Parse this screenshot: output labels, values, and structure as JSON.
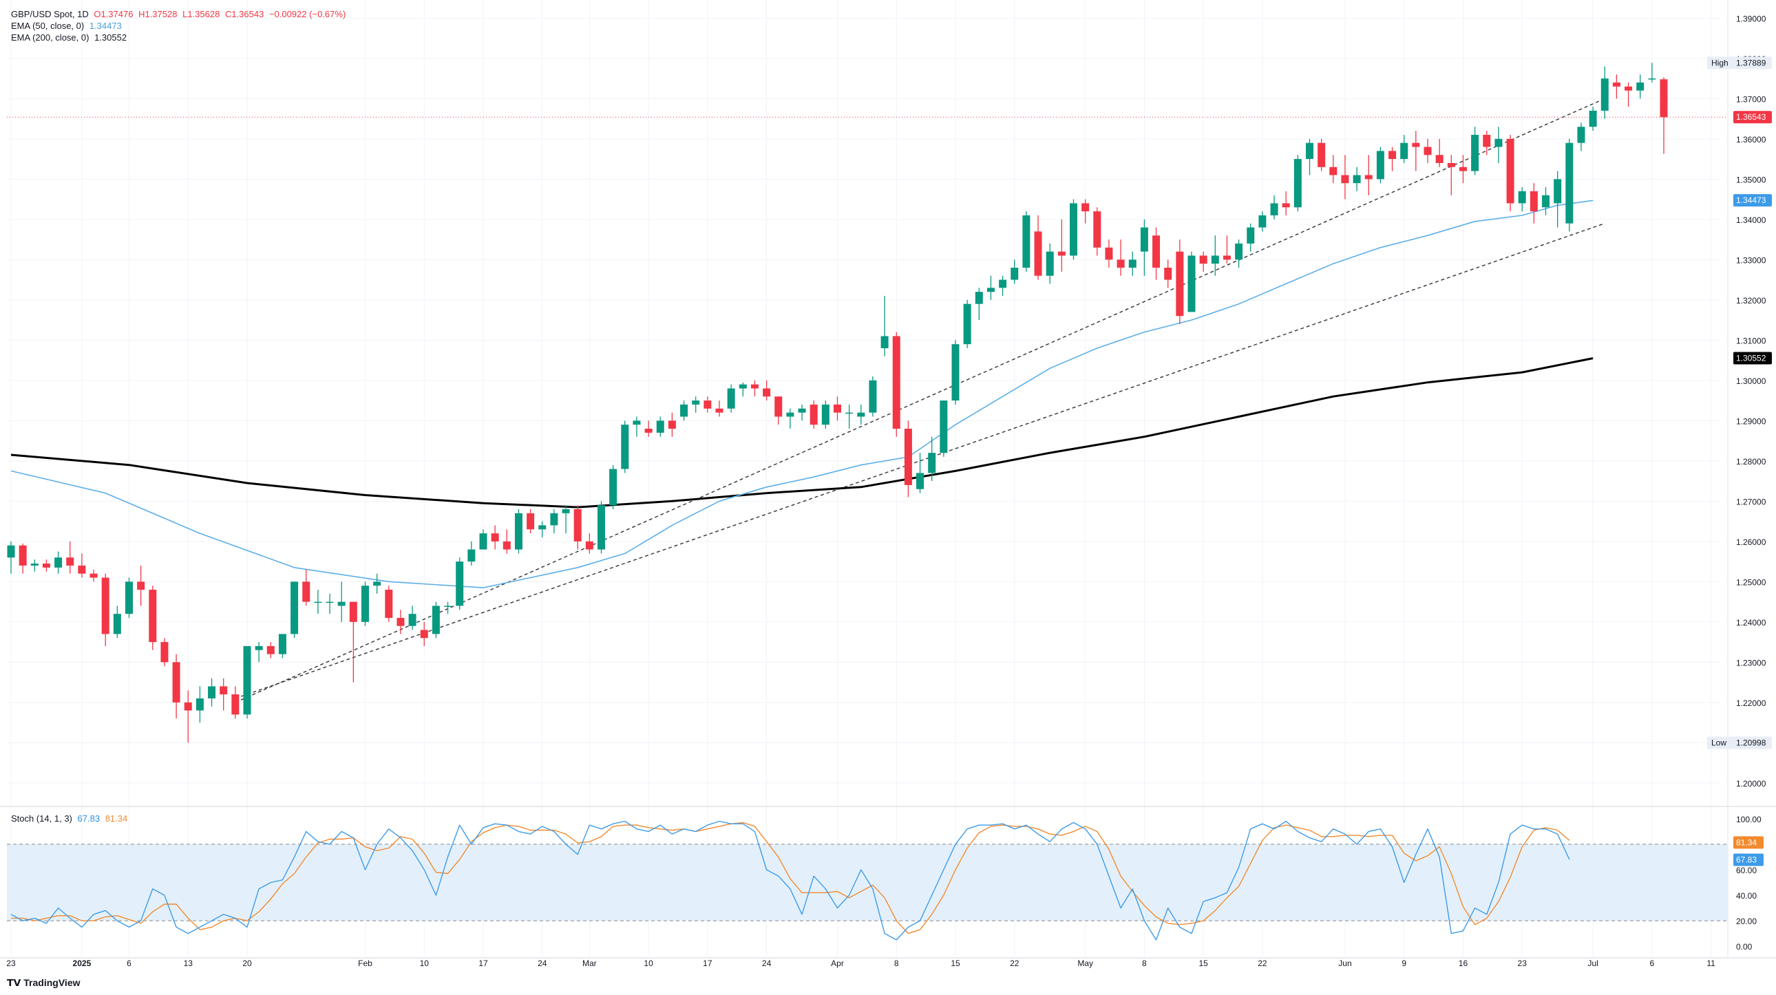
{
  "header": {
    "symbol": "GBP/USD Spot, 1D",
    "o": "O1.37476",
    "h": "H1.37528",
    "l": "L1.35628",
    "c": "C1.36543",
    "chg": "−0.00922 (−0.67%)",
    "ema50_label": "EMA (50, close, 0)",
    "ema50_value": "1.34473",
    "ema200_label": "EMA (200, close, 0)",
    "ema200_value": "1.30552"
  },
  "stoch": {
    "label": "Stoch (14, 1, 3)",
    "k_value": "67.83",
    "d_value": "81.34"
  },
  "footer": {
    "brand": "TradingView"
  },
  "colors": {
    "up": "#089981",
    "down": "#f23645",
    "ema50": "#5aaee8",
    "ema200": "#000000",
    "stoch_k": "#3d9be9",
    "stoch_d": "#f28a2e",
    "band": "#e3f0fb",
    "grid": "#f0f3fa",
    "axis_text": "#131722"
  },
  "chart_data": {
    "type": "candlestick",
    "price_axis": {
      "ticks": [
        "1.39000",
        "1.38000",
        "1.37000",
        "1.36000",
        "1.35000",
        "1.34000",
        "1.33000",
        "1.32000",
        "1.31000",
        "1.30000",
        "1.29000",
        "1.28000",
        "1.27000",
        "1.26000",
        "1.25000",
        "1.24000",
        "1.23000",
        "1.22000",
        "1.21000",
        "1.20000"
      ],
      "range": [
        1.1945,
        1.3945
      ],
      "labels": {
        "high_tag": "High",
        "high_value": "1.37889",
        "low_tag": "Low",
        "low_value": "1.20998",
        "last_value": "1.36543",
        "ema50_value": "1.34473",
        "ema200_value": "1.30552"
      }
    },
    "stoch_axis": {
      "ticks": [
        "100.00",
        "80.00",
        "60.00",
        "40.00",
        "20.00",
        "0.00"
      ],
      "range": [
        -8,
        108
      ],
      "upper_band": 80,
      "lower_band": 20
    },
    "time_axis": {
      "labels": [
        {
          "text": "23",
          "idx": 0
        },
        {
          "text": "2025",
          "idx": 6,
          "bold": true
        },
        {
          "text": "6",
          "idx": 10
        },
        {
          "text": "13",
          "idx": 15
        },
        {
          "text": "20",
          "idx": 20
        },
        {
          "text": "Feb",
          "idx": 30
        },
        {
          "text": "10",
          "idx": 35
        },
        {
          "text": "17",
          "idx": 40
        },
        {
          "text": "24",
          "idx": 45
        },
        {
          "text": "Mar",
          "idx": 49
        },
        {
          "text": "10",
          "idx": 54
        },
        {
          "text": "17",
          "idx": 59
        },
        {
          "text": "24",
          "idx": 64
        },
        {
          "text": "Apr",
          "idx": 70
        },
        {
          "text": "8",
          "idx": 75
        },
        {
          "text": "15",
          "idx": 80
        },
        {
          "text": "22",
          "idx": 85
        },
        {
          "text": "May",
          "idx": 91
        },
        {
          "text": "8",
          "idx": 96
        },
        {
          "text": "15",
          "idx": 101
        },
        {
          "text": "22",
          "idx": 106
        },
        {
          "text": "Jun",
          "idx": 113
        },
        {
          "text": "9",
          "idx": 118
        },
        {
          "text": "16",
          "idx": 123
        },
        {
          "text": "23",
          "idx": 128
        },
        {
          "text": "Jul",
          "idx": 134
        },
        {
          "text": "6",
          "idx": 139
        },
        {
          "text": "11",
          "idx": 144
        }
      ]
    },
    "candles": [
      [
        1.256,
        1.26,
        1.252,
        1.259
      ],
      [
        1.259,
        1.2595,
        1.252,
        1.254
      ],
      [
        1.254,
        1.2555,
        1.2525,
        1.2545
      ],
      [
        1.2545,
        1.2555,
        1.2525,
        1.2535
      ],
      [
        1.2535,
        1.2575,
        1.252,
        1.256
      ],
      [
        1.256,
        1.26,
        1.252,
        1.254
      ],
      [
        1.254,
        1.257,
        1.251,
        1.252
      ],
      [
        1.252,
        1.253,
        1.25,
        1.251
      ],
      [
        1.251,
        1.252,
        1.234,
        1.237
      ],
      [
        1.237,
        1.244,
        1.236,
        1.242
      ],
      [
        1.242,
        1.251,
        1.241,
        1.25
      ],
      [
        1.25,
        1.254,
        1.244,
        1.248
      ],
      [
        1.248,
        1.249,
        1.233,
        1.235
      ],
      [
        1.235,
        1.236,
        1.229,
        1.23
      ],
      [
        1.23,
        1.232,
        1.216,
        1.22
      ],
      [
        1.22,
        1.223,
        1.21,
        1.218
      ],
      [
        1.218,
        1.224,
        1.215,
        1.221
      ],
      [
        1.221,
        1.226,
        1.219,
        1.224
      ],
      [
        1.224,
        1.226,
        1.218,
        1.222
      ],
      [
        1.222,
        1.224,
        1.216,
        1.217
      ],
      [
        1.217,
        1.234,
        1.216,
        1.234
      ],
      [
        1.233,
        1.235,
        1.23,
        1.234
      ],
      [
        1.234,
        1.235,
        1.231,
        1.232
      ],
      [
        1.232,
        1.237,
        1.231,
        1.237
      ],
      [
        1.237,
        1.25,
        1.236,
        1.25
      ],
      [
        1.25,
        1.253,
        1.244,
        1.245
      ],
      [
        1.245,
        1.248,
        1.242,
        1.245
      ],
      [
        1.245,
        1.247,
        1.242,
        1.245
      ],
      [
        1.244,
        1.25,
        1.24,
        1.245
      ],
      [
        1.245,
        1.245,
        1.225,
        1.24
      ],
      [
        1.24,
        1.25,
        1.239,
        1.249
      ],
      [
        1.249,
        1.252,
        1.247,
        1.25
      ],
      [
        1.248,
        1.249,
        1.24,
        1.241
      ],
      [
        1.241,
        1.243,
        1.237,
        1.239
      ],
      [
        1.239,
        1.244,
        1.238,
        1.242
      ],
      [
        1.238,
        1.24,
        1.234,
        1.236
      ],
      [
        1.237,
        1.245,
        1.236,
        1.244
      ],
      [
        1.244,
        1.245,
        1.242,
        1.244
      ],
      [
        1.244,
        1.256,
        1.243,
        1.255
      ],
      [
        1.255,
        1.26,
        1.254,
        1.258
      ],
      [
        1.258,
        1.263,
        1.258,
        1.262
      ],
      [
        1.262,
        1.264,
        1.258,
        1.26
      ],
      [
        1.26,
        1.263,
        1.257,
        1.258
      ],
      [
        1.258,
        1.268,
        1.257,
        1.267
      ],
      [
        1.267,
        1.268,
        1.262,
        1.263
      ],
      [
        1.263,
        1.265,
        1.261,
        1.264
      ],
      [
        1.264,
        1.268,
        1.262,
        1.267
      ],
      [
        1.267,
        1.269,
        1.262,
        1.268
      ],
      [
        1.268,
        1.269,
        1.258,
        1.26
      ],
      [
        1.26,
        1.262,
        1.257,
        1.258
      ],
      [
        1.258,
        1.27,
        1.257,
        1.269
      ],
      [
        1.269,
        1.279,
        1.268,
        1.278
      ],
      [
        1.278,
        1.29,
        1.277,
        1.289
      ],
      [
        1.289,
        1.291,
        1.286,
        1.29
      ],
      [
        1.288,
        1.29,
        1.286,
        1.287
      ],
      [
        1.287,
        1.291,
        1.286,
        1.29
      ],
      [
        1.29,
        1.292,
        1.286,
        1.288
      ],
      [
        1.291,
        1.295,
        1.29,
        1.294
      ],
      [
        1.294,
        1.296,
        1.292,
        1.295
      ],
      [
        1.295,
        1.296,
        1.292,
        1.293
      ],
      [
        1.293,
        1.295,
        1.291,
        1.292
      ],
      [
        1.293,
        1.299,
        1.292,
        1.298
      ],
      [
        1.298,
        1.2995,
        1.296,
        1.299
      ],
      [
        1.299,
        1.3,
        1.296,
        1.298
      ],
      [
        1.298,
        1.3,
        1.295,
        1.296
      ],
      [
        1.296,
        1.296,
        1.289,
        1.291
      ],
      [
        1.291,
        1.293,
        1.288,
        1.292
      ],
      [
        1.292,
        1.294,
        1.29,
        1.293
      ],
      [
        1.294,
        1.295,
        1.288,
        1.289
      ],
      [
        1.289,
        1.295,
        1.288,
        1.294
      ],
      [
        1.294,
        1.296,
        1.29,
        1.292
      ],
      [
        1.292,
        1.294,
        1.288,
        1.292
      ],
      [
        1.291,
        1.294,
        1.289,
        1.292
      ],
      [
        1.292,
        1.301,
        1.291,
        1.3
      ],
      [
        1.308,
        1.321,
        1.306,
        1.311
      ],
      [
        1.311,
        1.312,
        1.286,
        1.288
      ],
      [
        1.288,
        1.29,
        1.271,
        1.274
      ],
      [
        1.273,
        1.282,
        1.272,
        1.277
      ],
      [
        1.277,
        1.286,
        1.275,
        1.282
      ],
      [
        1.282,
        1.295,
        1.281,
        1.295
      ],
      [
        1.295,
        1.31,
        1.294,
        1.309
      ],
      [
        1.309,
        1.32,
        1.308,
        1.319
      ],
      [
        1.319,
        1.323,
        1.315,
        1.322
      ],
      [
        1.322,
        1.326,
        1.32,
        1.323
      ],
      [
        1.323,
        1.326,
        1.321,
        1.325
      ],
      [
        1.325,
        1.33,
        1.324,
        1.328
      ],
      [
        1.328,
        1.342,
        1.327,
        1.341
      ],
      [
        1.337,
        1.341,
        1.325,
        1.326
      ],
      [
        1.326,
        1.334,
        1.324,
        1.332
      ],
      [
        1.332,
        1.34,
        1.327,
        1.331
      ],
      [
        1.331,
        1.345,
        1.33,
        1.344
      ],
      [
        1.344,
        1.345,
        1.339,
        1.342
      ],
      [
        1.342,
        1.343,
        1.331,
        1.333
      ],
      [
        1.333,
        1.335,
        1.328,
        1.33
      ],
      [
        1.33,
        1.335,
        1.326,
        1.328
      ],
      [
        1.328,
        1.332,
        1.326,
        1.33
      ],
      [
        1.332,
        1.34,
        1.326,
        1.338
      ],
      [
        1.336,
        1.338,
        1.325,
        1.328
      ],
      [
        1.328,
        1.33,
        1.323,
        1.325
      ],
      [
        1.332,
        1.335,
        1.314,
        1.316
      ],
      [
        1.317,
        1.332,
        1.317,
        1.331
      ],
      [
        1.331,
        1.332,
        1.327,
        1.329
      ],
      [
        1.329,
        1.336,
        1.326,
        1.331
      ],
      [
        1.331,
        1.336,
        1.329,
        1.33
      ],
      [
        1.33,
        1.335,
        1.328,
        1.334
      ],
      [
        1.334,
        1.339,
        1.332,
        1.338
      ],
      [
        1.338,
        1.342,
        1.337,
        1.341
      ],
      [
        1.341,
        1.346,
        1.34,
        1.344
      ],
      [
        1.344,
        1.347,
        1.341,
        1.343
      ],
      [
        1.343,
        1.356,
        1.342,
        1.355
      ],
      [
        1.355,
        1.36,
        1.351,
        1.359
      ],
      [
        1.359,
        1.36,
        1.352,
        1.353
      ],
      [
        1.353,
        1.356,
        1.349,
        1.351
      ],
      [
        1.351,
        1.356,
        1.345,
        1.349
      ],
      [
        1.349,
        1.353,
        1.347,
        1.351
      ],
      [
        1.351,
        1.356,
        1.346,
        1.35
      ],
      [
        1.35,
        1.358,
        1.349,
        1.357
      ],
      [
        1.357,
        1.358,
        1.352,
        1.355
      ],
      [
        1.355,
        1.361,
        1.354,
        1.359
      ],
      [
        1.359,
        1.362,
        1.352,
        1.358
      ],
      [
        1.358,
        1.36,
        1.354,
        1.356
      ],
      [
        1.356,
        1.36,
        1.353,
        1.354
      ],
      [
        1.354,
        1.356,
        1.346,
        1.353
      ],
      [
        1.353,
        1.356,
        1.349,
        1.352
      ],
      [
        1.352,
        1.363,
        1.351,
        1.361
      ],
      [
        1.361,
        1.362,
        1.356,
        1.358
      ],
      [
        1.358,
        1.363,
        1.354,
        1.36
      ],
      [
        1.36,
        1.361,
        1.342,
        1.344
      ],
      [
        1.344,
        1.348,
        1.342,
        1.347
      ],
      [
        1.347,
        1.349,
        1.339,
        1.342
      ],
      [
        1.343,
        1.348,
        1.341,
        1.346
      ],
      [
        1.344,
        1.352,
        1.338,
        1.35
      ],
      [
        1.339,
        1.36,
        1.337,
        1.359
      ],
      [
        1.359,
        1.364,
        1.357,
        1.363
      ],
      [
        1.363,
        1.368,
        1.362,
        1.367
      ],
      [
        1.367,
        1.378,
        1.365,
        1.375
      ],
      [
        1.374,
        1.376,
        1.37,
        1.373
      ],
      [
        1.373,
        1.374,
        1.368,
        1.372
      ],
      [
        1.372,
        1.376,
        1.37,
        1.374
      ],
      [
        1.375,
        1.3789,
        1.374,
        1.375
      ],
      [
        1.3748,
        1.3753,
        1.3563,
        1.3654
      ]
    ],
    "ema50": [
      [
        0,
        1.2775
      ],
      [
        8,
        1.272
      ],
      [
        16,
        1.262
      ],
      [
        24,
        1.2535
      ],
      [
        32,
        1.25
      ],
      [
        40,
        1.2485
      ],
      [
        48,
        1.2535
      ],
      [
        52,
        1.257
      ],
      [
        56,
        1.264
      ],
      [
        60,
        1.27
      ],
      [
        64,
        1.2735
      ],
      [
        68,
        1.276
      ],
      [
        72,
        1.279
      ],
      [
        76,
        1.281
      ],
      [
        80,
        1.289
      ],
      [
        84,
        1.296
      ],
      [
        88,
        1.303
      ],
      [
        92,
        1.308
      ],
      [
        96,
        1.312
      ],
      [
        100,
        1.315
      ],
      [
        104,
        1.319
      ],
      [
        108,
        1.324
      ],
      [
        112,
        1.329
      ],
      [
        116,
        1.333
      ],
      [
        120,
        1.336
      ],
      [
        124,
        1.3395
      ],
      [
        128,
        1.341
      ],
      [
        131,
        1.3435
      ],
      [
        134,
        1.3447
      ]
    ],
    "ema200": [
      [
        0,
        1.2815
      ],
      [
        10,
        1.279
      ],
      [
        20,
        1.2745
      ],
      [
        30,
        1.2715
      ],
      [
        40,
        1.2695
      ],
      [
        48,
        1.2685
      ],
      [
        56,
        1.27
      ],
      [
        64,
        1.272
      ],
      [
        72,
        1.2735
      ],
      [
        80,
        1.2775
      ],
      [
        88,
        1.282
      ],
      [
        96,
        1.286
      ],
      [
        104,
        1.291
      ],
      [
        112,
        1.296
      ],
      [
        120,
        1.2995
      ],
      [
        128,
        1.302
      ],
      [
        134,
        1.3055
      ]
    ],
    "trendlines": [
      [
        [
          19,
          1.22
        ],
        [
          135,
          1.37
        ]
      ],
      [
        [
          19,
          1.221
        ],
        [
          135,
          1.339
        ]
      ]
    ],
    "stoch_k": [
      25,
      20,
      22,
      18,
      30,
      22,
      15,
      25,
      28,
      20,
      15,
      20,
      45,
      40,
      15,
      10,
      15,
      20,
      25,
      22,
      15,
      45,
      50,
      52,
      70,
      90,
      82,
      80,
      90,
      85,
      60,
      80,
      92,
      85,
      75,
      60,
      40,
      70,
      95,
      80,
      93,
      96,
      95,
      90,
      88,
      94,
      90,
      80,
      72,
      95,
      92,
      96,
      98,
      92,
      90,
      95,
      88,
      92,
      90,
      95,
      98,
      96,
      96,
      90,
      60,
      55,
      45,
      25,
      55,
      45,
      30,
      40,
      60,
      45,
      10,
      5,
      15,
      20,
      40,
      60,
      80,
      92,
      95,
      95,
      96,
      92,
      95,
      88,
      82,
      92,
      97,
      92,
      80,
      55,
      30,
      45,
      20,
      5,
      30,
      15,
      10,
      35,
      38,
      42,
      62,
      92,
      96,
      92,
      98,
      90,
      85,
      82,
      92,
      88,
      80,
      90,
      92,
      78,
      50,
      72,
      92,
      70,
      10,
      12,
      30,
      25,
      50,
      88,
      95,
      92,
      92,
      88,
      68
    ],
    "stoch_d": [
      22,
      22,
      20,
      22,
      24,
      24,
      20,
      20,
      23,
      24,
      21,
      18,
      27,
      33,
      33,
      22,
      13,
      15,
      20,
      22,
      20,
      27,
      37,
      49,
      57,
      70,
      81,
      84,
      84,
      85,
      78,
      75,
      77,
      86,
      84,
      73,
      58,
      57,
      68,
      82,
      89,
      93,
      95,
      94,
      91,
      91,
      91,
      88,
      81,
      82,
      86,
      94,
      95,
      95,
      93,
      92,
      91,
      92,
      90,
      92,
      94,
      96,
      97,
      94,
      82,
      70,
      53,
      42,
      42,
      42,
      43,
      38,
      43,
      48,
      38,
      20,
      10,
      13,
      25,
      40,
      60,
      77,
      89,
      94,
      95,
      94,
      94,
      92,
      88,
      87,
      90,
      94,
      90,
      76,
      55,
      43,
      32,
      23,
      18,
      17,
      18,
      20,
      28,
      38,
      47,
      65,
      83,
      93,
      95,
      93,
      91,
      86,
      86,
      87,
      87,
      86,
      87,
      87,
      73,
      67,
      71,
      78,
      57,
      31,
      17,
      22,
      35,
      54,
      78,
      91,
      93,
      91,
      83
    ]
  }
}
